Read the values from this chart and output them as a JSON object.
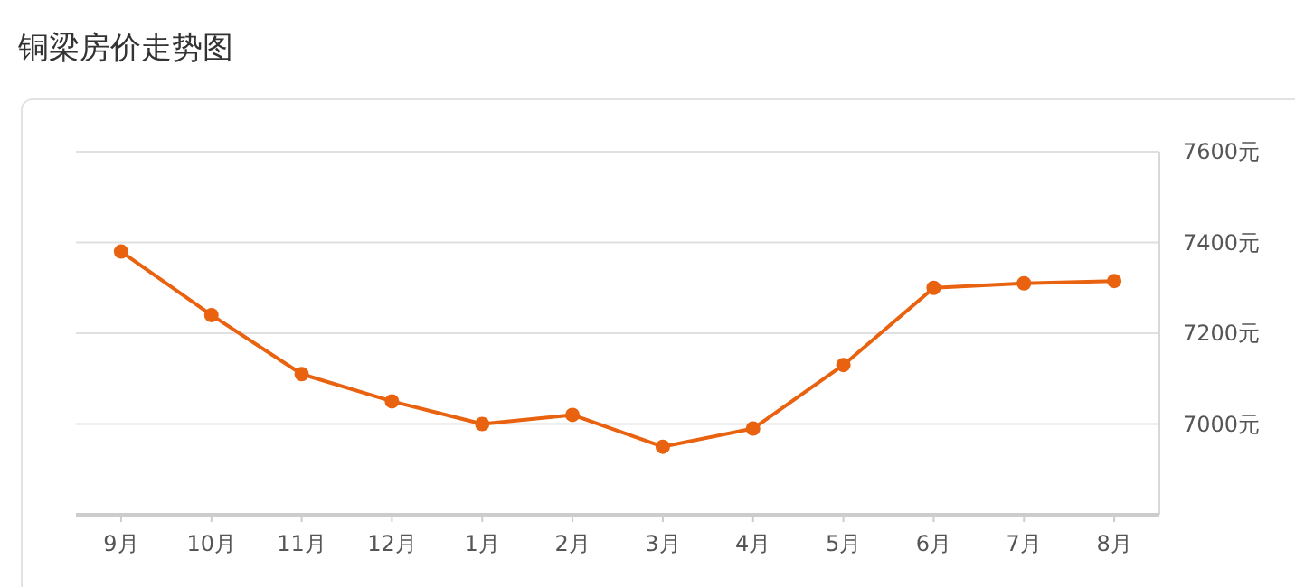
{
  "chart_data": {
    "type": "line",
    "title": "铜梁房价走势图",
    "categories": [
      "9月",
      "10月",
      "11月",
      "12月",
      "1月",
      "2月",
      "3月",
      "4月",
      "5月",
      "6月",
      "7月",
      "8月"
    ],
    "series": [
      {
        "color": "#e8620f",
        "values": [
          7380,
          7240,
          7110,
          7050,
          7000,
          7020,
          6950,
          6990,
          7130,
          7300,
          7310,
          7315
        ]
      }
    ],
    "ylim": [
      6800,
      7600
    ],
    "yticks": [
      {
        "value": 7000,
        "label": "7000元"
      },
      {
        "value": 7200,
        "label": "7200元"
      },
      {
        "value": 7400,
        "label": "7400元"
      },
      {
        "value": 7600,
        "label": "7600元"
      }
    ],
    "grid": "y",
    "marker": "circle",
    "line_style": "solid"
  }
}
